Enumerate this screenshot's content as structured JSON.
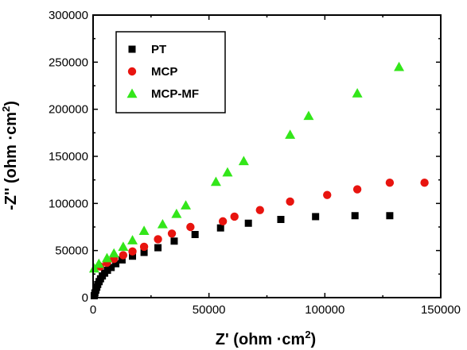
{
  "chart_data": {
    "type": "scatter",
    "xlim": [
      0,
      150000
    ],
    "ylim": [
      0,
      300000
    ],
    "x_ticks": [
      "0",
      "50000",
      "100000",
      "150000"
    ],
    "y_ticks": [
      "0",
      "50000",
      "100000",
      "150000",
      "200000",
      "250000",
      "300000"
    ],
    "xlabel": {
      "main": "Z' (ohm ·cm",
      "sup": "2",
      "end": ")"
    },
    "ylabel": {
      "main": "-Z'' (ohm ·cm",
      "sup": "2",
      "end": ")"
    },
    "legend_position": "top-left",
    "grid": false,
    "series": [
      {
        "name": "PT",
        "marker": "square",
        "color": "#000000",
        "points": [
          [
            500,
            2000
          ],
          [
            800,
            5000
          ],
          [
            1200,
            8000
          ],
          [
            1600,
            11000
          ],
          [
            2000,
            14000
          ],
          [
            2600,
            17000
          ],
          [
            3200,
            20000
          ],
          [
            4000,
            23000
          ],
          [
            5000,
            26000
          ],
          [
            6200,
            29000
          ],
          [
            7800,
            32000
          ],
          [
            9800,
            36000
          ],
          [
            12500,
            40000
          ],
          [
            17000,
            44000
          ],
          [
            22000,
            48000
          ],
          [
            28000,
            53000
          ],
          [
            35000,
            60000
          ],
          [
            44000,
            67000
          ],
          [
            55000,
            74000
          ],
          [
            67000,
            79000
          ],
          [
            81000,
            83000
          ],
          [
            96000,
            86000
          ],
          [
            113000,
            87000
          ],
          [
            128000,
            87000
          ]
        ]
      },
      {
        "name": "MCP",
        "marker": "circle",
        "color": "#e8140f",
        "points": [
          [
            3000,
            33000
          ],
          [
            6000,
            37000
          ],
          [
            9000,
            41000
          ],
          [
            13000,
            45000
          ],
          [
            17000,
            49000
          ],
          [
            22000,
            54000
          ],
          [
            28000,
            62000
          ],
          [
            34000,
            68000
          ],
          [
            42000,
            75000
          ],
          [
            56000,
            81000
          ],
          [
            61000,
            86000
          ],
          [
            72000,
            93000
          ],
          [
            85000,
            102000
          ],
          [
            101000,
            109000
          ],
          [
            114000,
            115000
          ],
          [
            128000,
            122000
          ],
          [
            143000,
            122000
          ]
        ]
      },
      {
        "name": "MCP-MF",
        "marker": "triangle",
        "color": "#33e61a",
        "points": [
          [
            500,
            31000
          ],
          [
            2500,
            36000
          ],
          [
            6000,
            42000
          ],
          [
            9000,
            47000
          ],
          [
            13000,
            54000
          ],
          [
            17000,
            61000
          ],
          [
            22000,
            71000
          ],
          [
            30000,
            78000
          ],
          [
            36000,
            89000
          ],
          [
            40000,
            98000
          ],
          [
            53000,
            123000
          ],
          [
            58000,
            133000
          ],
          [
            65000,
            145000
          ],
          [
            85000,
            173000
          ],
          [
            93000,
            193000
          ],
          [
            114000,
            217000
          ],
          [
            132000,
            245000
          ]
        ]
      }
    ]
  }
}
